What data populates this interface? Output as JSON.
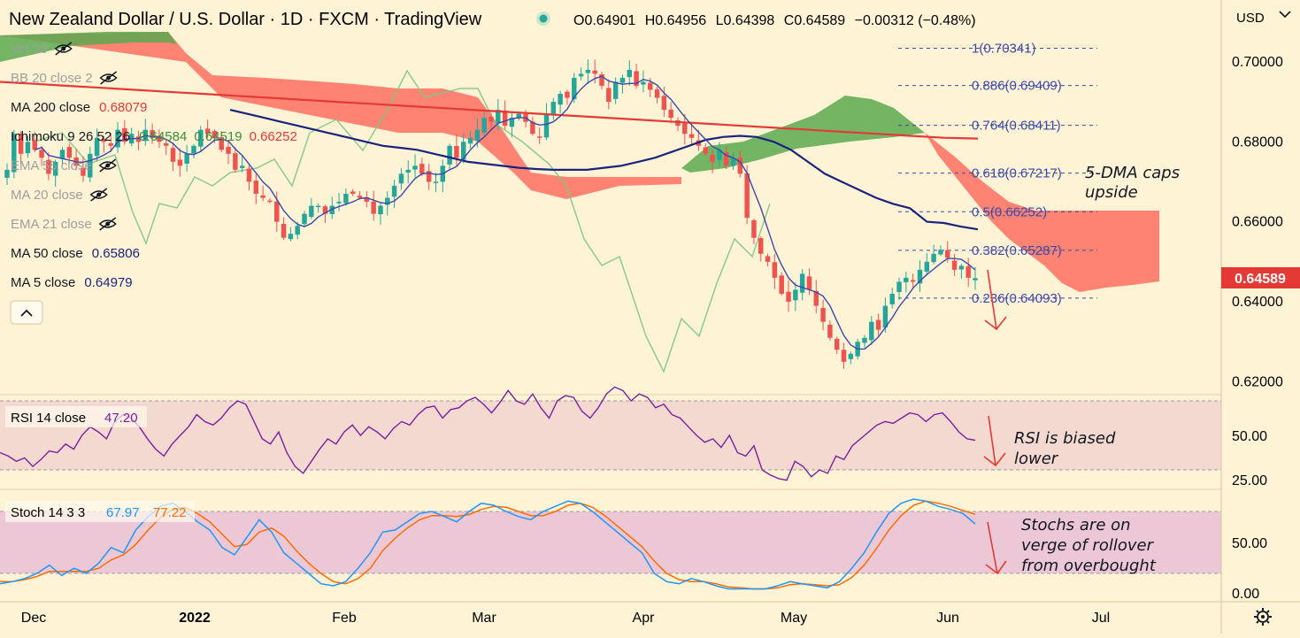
{
  "header": {
    "title": "New Zealand Dollar / U.S. Dollar · 1D · FXCM · TradingView",
    "open": "O0.64901",
    "high": "H0.64956",
    "low": "L0.64398",
    "close": "C0.64589",
    "change": "−0.00312 (−0.48%)",
    "currency": "USD"
  },
  "indicators": [
    {
      "label": "Vol 20",
      "value": "",
      "color": "#9e9e9e",
      "hidden": true
    },
    {
      "label": "BB 20 close 2",
      "value": "",
      "color": "#9e9e9e",
      "hidden": true
    },
    {
      "label": "MA 200 close",
      "value": "0.68079",
      "color": "#e53935",
      "hidden": false
    },
    {
      "label": "Ichimoku 9 26 52 26",
      "value": "",
      "values": [
        {
          "v": "0.64584",
          "color": "#388e3c"
        },
        {
          "v": "0.64519",
          "color": "#388e3c"
        },
        {
          "v": "0.66252",
          "color": "#e53935"
        }
      ],
      "color": "#131722",
      "hidden": false
    },
    {
      "label": "EMA 55 close",
      "value": "",
      "color": "#9e9e9e",
      "hidden": true
    },
    {
      "label": "MA 20 close",
      "value": "",
      "color": "#9e9e9e",
      "hidden": true
    },
    {
      "label": "EMA 21 close",
      "value": "",
      "color": "#9e9e9e",
      "hidden": true
    },
    {
      "label": "MA 50 close",
      "value": "0.65806",
      "color": "#1a237e",
      "hidden": false
    },
    {
      "label": "MA 5 close",
      "value": "0.64979",
      "color": "#1a237e",
      "hidden": false
    }
  ],
  "colors": {
    "background": "#fff3d6",
    "up": "#26a69a",
    "down": "#ef5350",
    "ma200": "#e53935",
    "ma50": "#1a237e",
    "ma5": "#3949ab",
    "cloud_bear": "#ff5252",
    "cloud_bull": "#4caf50",
    "lagging": "#81c784",
    "rsi": "#7b1fa2",
    "stoch_k": "#2196f3",
    "stoch_d": "#ff6d00",
    "fib": "#3949ab",
    "arrow": "#e53935",
    "price_tag": "#e53935"
  },
  "chart_data": {
    "type": "candlestick",
    "symbol": "NZDUSD",
    "timeframe": "1D",
    "ylim": [
      0.617,
      0.7055
    ],
    "y_ticks": [
      "0.70000",
      "0.68000",
      "0.66000",
      "0.64000",
      "0.62000"
    ],
    "x_ticks": [
      "Dec",
      "2022",
      "Feb",
      "Mar",
      "Apr",
      "May",
      "Jun",
      "Jul"
    ],
    "last_price": "0.64589",
    "closes": [
      0.673,
      0.682,
      0.677,
      0.68,
      0.678,
      0.676,
      0.672,
      0.675,
      0.678,
      0.676,
      0.674,
      0.6715,
      0.677,
      0.681,
      0.68,
      0.679,
      0.683,
      0.68,
      0.682,
      0.68,
      0.683,
      0.681,
      0.68,
      0.679,
      0.675,
      0.674,
      0.677,
      0.679,
      0.683,
      0.682,
      0.681,
      0.678,
      0.677,
      0.673,
      0.674,
      0.67,
      0.667,
      0.666,
      0.665,
      0.66,
      0.656,
      0.657,
      0.659,
      0.662,
      0.664,
      0.664,
      0.662,
      0.664,
      0.665,
      0.667,
      0.667,
      0.666,
      0.665,
      0.662,
      0.664,
      0.666,
      0.669,
      0.672,
      0.673,
      0.674,
      0.672,
      0.67,
      0.67,
      0.674,
      0.679,
      0.676,
      0.68,
      0.681,
      0.683,
      0.686,
      0.685,
      0.688,
      0.684,
      0.686,
      0.687,
      0.685,
      0.682,
      0.681,
      0.687,
      0.69,
      0.692,
      0.691,
      0.696,
      0.697,
      0.698,
      0.697,
      0.694,
      0.69,
      0.695,
      0.696,
      0.698,
      0.694,
      0.695,
      0.693,
      0.691,
      0.688,
      0.686,
      0.684,
      0.682,
      0.681,
      0.679,
      0.677,
      0.675,
      0.678,
      0.674,
      0.676,
      0.672,
      0.661,
      0.656,
      0.652,
      0.65,
      0.646,
      0.642,
      0.64,
      0.643,
      0.647,
      0.643,
      0.639,
      0.635,
      0.631,
      0.628,
      0.625,
      0.627,
      0.63,
      0.631,
      0.635,
      0.633,
      0.639,
      0.642,
      0.645,
      0.646,
      0.645,
      0.648,
      0.65,
      0.652,
      0.653,
      0.651,
      0.648,
      0.649,
      0.646,
      0.6459
    ],
    "ma50": [
      0.688,
      0.687,
      0.686,
      0.685,
      0.684,
      0.683,
      0.682,
      0.681,
      0.68,
      0.679,
      0.6785,
      0.678,
      0.677,
      0.676,
      0.675,
      0.6745,
      0.674,
      0.6735,
      0.6732,
      0.673,
      0.673,
      0.673,
      0.6735,
      0.674,
      0.675,
      0.676,
      0.6775,
      0.679,
      0.6805,
      0.6812,
      0.6815,
      0.6812,
      0.68,
      0.678,
      0.675,
      0.672,
      0.67,
      0.668,
      0.666,
      0.6645,
      0.6634,
      0.66,
      0.6597,
      0.6588,
      0.6581
    ],
    "ma200": [
      0.695,
      0.6945,
      0.694,
      0.6935,
      0.693,
      0.6925,
      0.692,
      0.6915,
      0.691,
      0.6905,
      0.69,
      0.6895,
      0.689,
      0.6885,
      0.688,
      0.6875,
      0.687,
      0.6865,
      0.686,
      0.6855,
      0.685,
      0.6845,
      0.684,
      0.6835,
      0.683,
      0.6825,
      0.682,
      0.6815,
      0.681,
      0.6808
    ],
    "fib_levels": [
      {
        "label": "1(0.70341)",
        "value": 0.70341
      },
      {
        "label": "0.886(0.69409)",
        "value": 0.69409
      },
      {
        "label": "0.764(0.68411)",
        "value": 0.68411
      },
      {
        "label": "0.618(0.67217)",
        "value": 0.67217
      },
      {
        "label": "0.5(0.66252)",
        "value": 0.66252
      },
      {
        "label": "0.382(0.65287)",
        "value": 0.65287
      },
      {
        "label": "0.236(0.64093)",
        "value": 0.64093
      }
    ],
    "rsi": {
      "label": "RSI 14 close",
      "value": "47.20",
      "ylim": [
        0,
        90
      ],
      "ticks": [
        "50.00",
        "25.00"
      ],
      "band": [
        30,
        70
      ],
      "values": [
        40,
        38,
        35,
        37,
        32,
        36,
        41,
        40,
        45,
        42,
        50,
        55,
        52,
        48,
        58,
        62,
        60,
        55,
        48,
        42,
        38,
        45,
        50,
        55,
        62,
        58,
        56,
        60,
        66,
        70,
        68,
        58,
        48,
        45,
        52,
        40,
        32,
        28,
        35,
        42,
        48,
        45,
        52,
        56,
        50,
        55,
        52,
        48,
        54,
        58,
        56,
        62,
        66,
        67,
        60,
        65,
        66,
        70,
        72,
        68,
        63,
        69,
        76,
        70,
        68,
        74,
        66,
        60,
        70,
        73,
        72,
        64,
        60,
        66,
        74,
        78,
        76,
        70,
        74,
        72,
        66,
        68,
        62,
        60,
        55,
        50,
        46,
        48,
        43,
        50,
        40,
        38,
        44,
        30,
        27,
        25,
        24,
        35,
        32,
        26,
        30,
        28,
        38,
        36,
        44,
        48,
        52,
        56,
        58,
        57,
        60,
        63,
        62,
        58,
        62,
        63,
        58,
        52,
        48,
        47.2
      ]
    },
    "stoch": {
      "label": "Stoch 14 3 3",
      "k": "67.97",
      "d": "77.22",
      "ylim": [
        0,
        100
      ],
      "ticks": [
        "50.00",
        "0.00"
      ],
      "band": [
        20,
        80
      ],
      "k_values": [
        10,
        12,
        15,
        20,
        28,
        18,
        25,
        20,
        30,
        45,
        40,
        62,
        75,
        85,
        88,
        80,
        70,
        62,
        45,
        38,
        55,
        72,
        60,
        40,
        30,
        20,
        10,
        8,
        12,
        25,
        40,
        60,
        62,
        70,
        78,
        80,
        75,
        70,
        80,
        88,
        86,
        80,
        75,
        72,
        80,
        85,
        90,
        88,
        80,
        70,
        60,
        50,
        40,
        20,
        12,
        10,
        15,
        12,
        8,
        5,
        5,
        5,
        5,
        8,
        12,
        10,
        8,
        6,
        12,
        25,
        40,
        60,
        78,
        88,
        92,
        90,
        85,
        82,
        78,
        68
      ],
      "d_values": [
        12,
        12,
        14,
        17,
        22,
        22,
        22,
        22,
        25,
        33,
        38,
        48,
        62,
        74,
        82,
        84,
        78,
        70,
        58,
        46,
        48,
        60,
        64,
        56,
        42,
        30,
        20,
        12,
        10,
        15,
        25,
        42,
        54,
        64,
        72,
        76,
        76,
        75,
        77,
        82,
        85,
        84,
        80,
        76,
        76,
        80,
        86,
        88,
        84,
        76,
        66,
        56,
        46,
        32,
        20,
        14,
        12,
        12,
        10,
        7,
        6,
        5,
        5,
        6,
        9,
        10,
        9,
        8,
        9,
        16,
        28,
        44,
        62,
        76,
        86,
        90,
        88,
        85,
        81,
        77.22
      ]
    }
  },
  "annotations": {
    "dma_caps": [
      "5-DMA caps",
      "upside"
    ],
    "rsi_biased": [
      "RSI is biased",
      "lower"
    ],
    "stochs": [
      "Stochs are on",
      "verge of rollover",
      "from overbought"
    ]
  },
  "controls": {
    "collapse_icon": "chevron-up-icon",
    "settings_icon": "gear-icon"
  }
}
